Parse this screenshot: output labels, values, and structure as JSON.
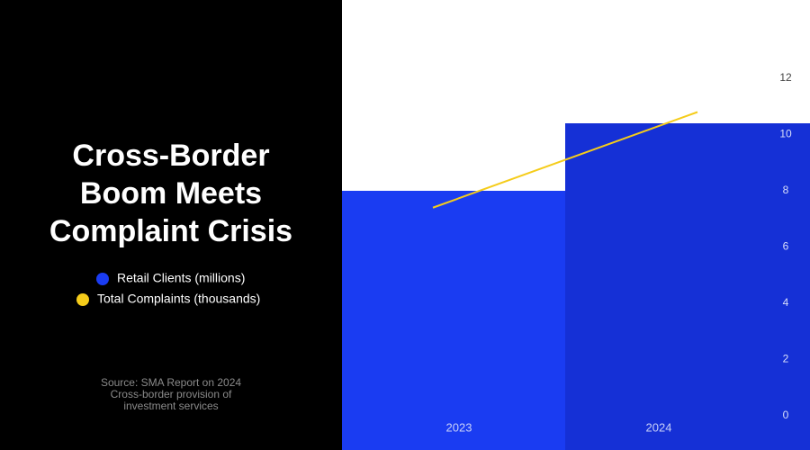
{
  "chart_data": {
    "type": "bar",
    "title": [
      "Cross-Border",
      "Boom Meets",
      "Complaint Crisis"
    ],
    "source": "Source: SMA Report on 2024 Cross-border provision of investment services",
    "categories": [
      "2023",
      "2024"
    ],
    "series": [
      {
        "name": "Retail Clients (millions)",
        "type": "bar",
        "colors": [
          "#1a3cf2",
          "#1530d6"
        ],
        "color": "#1a3cf2",
        "values": [
          8.0,
          10.4
        ]
      },
      {
        "name": "Total Complaints (thousands)",
        "type": "line",
        "color": "#f5cc1a",
        "values": [
          7.4,
          10.8
        ]
      }
    ],
    "ylim": [
      0,
      12
    ],
    "yticks": [
      0,
      2,
      4,
      6,
      8,
      10,
      12
    ]
  }
}
